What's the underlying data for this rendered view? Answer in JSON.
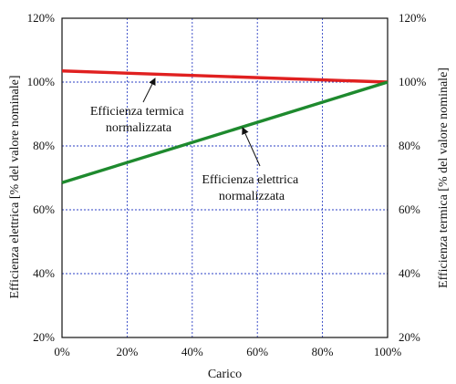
{
  "chart_data": {
    "type": "line",
    "xlabel": "Carico",
    "ylabel_left": "Efficienza elettrica [% del valore nominale]",
    "ylabel_right": "Efficienza termica [% del valore nominale]",
    "xlim": [
      0,
      100
    ],
    "ylim": [
      20,
      120
    ],
    "x_ticks": [
      {
        "value": 0,
        "label": "0%"
      },
      {
        "value": 20,
        "label": "20%"
      },
      {
        "value": 40,
        "label": "40%"
      },
      {
        "value": 60,
        "label": "60%"
      },
      {
        "value": 80,
        "label": "80%"
      },
      {
        "value": 100,
        "label": "100%"
      }
    ],
    "y_ticks": [
      {
        "value": 20,
        "label": "20%"
      },
      {
        "value": 40,
        "label": "40%"
      },
      {
        "value": 60,
        "label": "60%"
      },
      {
        "value": 80,
        "label": "80%"
      },
      {
        "value": 100,
        "label": "100%"
      },
      {
        "value": 120,
        "label": "120%"
      }
    ],
    "grid": true,
    "series": [
      {
        "key": "termica",
        "color": "#e02020",
        "points": [
          [
            0,
            103.5
          ],
          [
            100,
            100
          ]
        ]
      },
      {
        "key": "elettrica",
        "color": "#1e8a2e",
        "points": [
          [
            0,
            68.5
          ],
          [
            100,
            100
          ]
        ]
      }
    ],
    "annotations": [
      {
        "key": "termica",
        "lines": [
          "Efficienza termica",
          "normalizzata"
        ]
      },
      {
        "key": "elettrica",
        "lines": [
          "Efficienza elettrica",
          "normalizzata"
        ]
      }
    ]
  }
}
